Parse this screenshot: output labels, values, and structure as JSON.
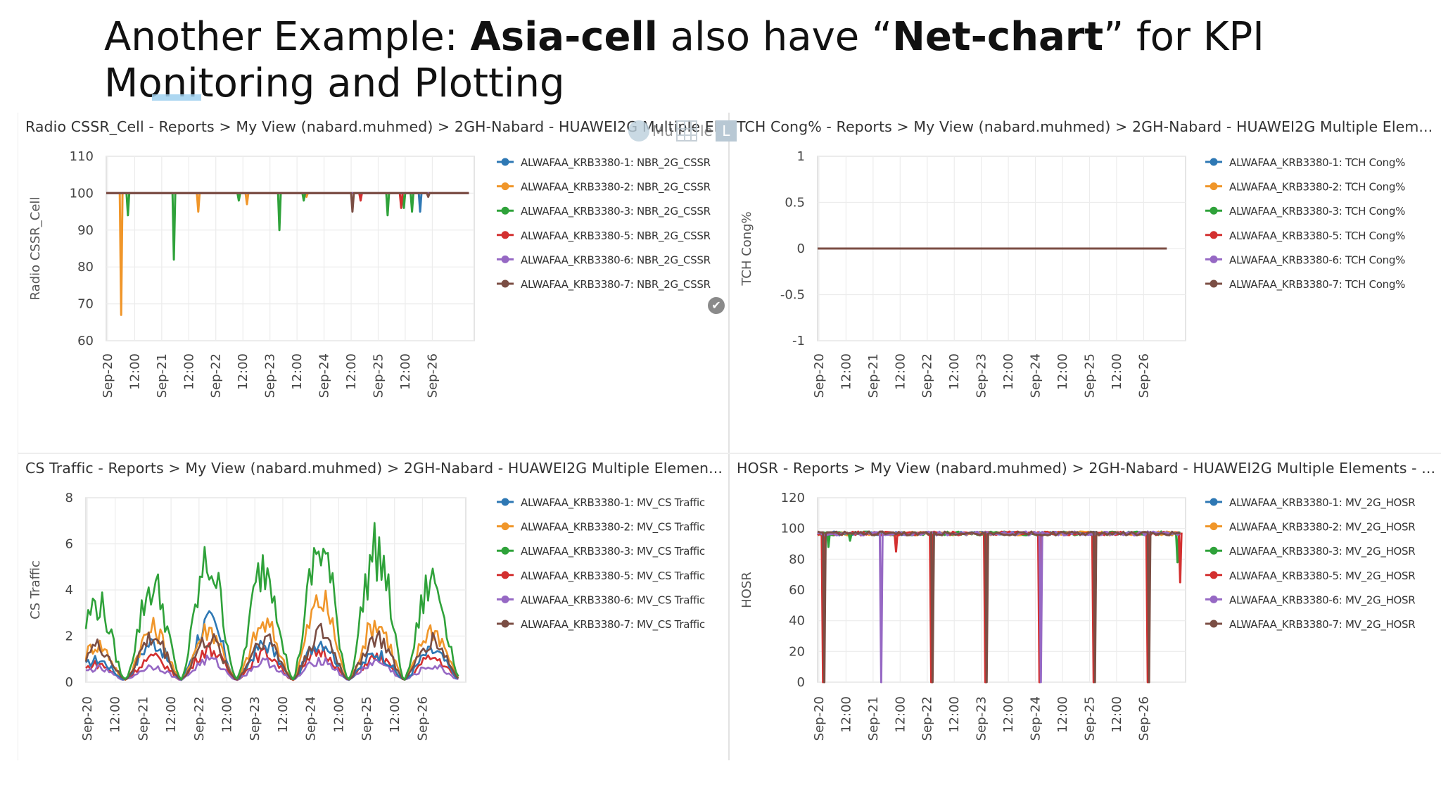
{
  "slide": {
    "title_parts": [
      {
        "text": "Another Example: ",
        "bold": false
      },
      {
        "text": "Asia-cell",
        "bold": true
      },
      {
        "text": " also have “",
        "bold": false
      },
      {
        "text": "Net-chart",
        "bold": true
      },
      {
        "text": "” for KPI Monitoring and Plotting",
        "bold": false
      }
    ],
    "accent_underline_color": "#9fd0ee"
  },
  "toolbar": {
    "gear_icon": "gear-icon",
    "grid_icon": "grid-icon",
    "grid_label": "Mu",
    "grid_label2": "le",
    "l_button_label": "L",
    "check_icon": "check-circle-icon",
    "check_glyph": "✔"
  },
  "legend_colors": [
    "#2e78b4",
    "#f0962a",
    "#2fa23a",
    "#d33030",
    "#9668c4",
    "#7b4e44"
  ],
  "chart_data": [
    {
      "type": "line",
      "header": "Radio CSSR_Cell - Reports > My View (nabard.muhmed) > 2GH-Nabard - HUAWEI2G Multiple Elements",
      "ylabel": "Radio CSSR_Cell",
      "ylim": [
        60,
        110
      ],
      "yticks": [
        60,
        70,
        80,
        90,
        100,
        110
      ],
      "x_ticks": [
        "Sep-20",
        "12:00",
        "Sep-21",
        "12:00",
        "Sep-22",
        "12:00",
        "Sep-23",
        "12:00",
        "Sep-24",
        "12:00",
        "Sep-25",
        "12:00",
        "Sep-26"
      ],
      "grid": true,
      "legend": "right",
      "series": [
        {
          "name": "ALWAFAA_KRB3380-1: NBR_2G_CSSR",
          "baseline": 100,
          "dips": [
            [
              11.6,
              95
            ]
          ]
        },
        {
          "name": "ALWAFAA_KRB3380-2: NBR_2G_CSSR",
          "baseline": 100,
          "dips": [
            [
              0.55,
              67
            ],
            [
              3.4,
              95
            ],
            [
              5.2,
              97
            ],
            [
              7.4,
              99
            ]
          ]
        },
        {
          "name": "ALWAFAA_KRB3380-3: NBR_2G_CSSR",
          "baseline": 100,
          "dips": [
            [
              0.8,
              94
            ],
            [
              2.5,
              82
            ],
            [
              4.9,
              98
            ],
            [
              6.4,
              90
            ],
            [
              7.3,
              98
            ],
            [
              10.4,
              94
            ],
            [
              11.0,
              96
            ],
            [
              11.3,
              95
            ]
          ]
        },
        {
          "name": "ALWAFAA_KRB3380-5: NBR_2G_CSSR",
          "baseline": 100,
          "dips": [
            [
              9.4,
              98
            ],
            [
              10.9,
              96
            ]
          ]
        },
        {
          "name": "ALWAFAA_KRB3380-6: NBR_2G_CSSR",
          "baseline": 100,
          "dips": []
        },
        {
          "name": "ALWAFAA_KRB3380-7: NBR_2G_CSSR",
          "baseline": 100,
          "dips": [
            [
              9.1,
              95
            ],
            [
              11.9,
              99
            ]
          ]
        }
      ]
    },
    {
      "type": "line",
      "header": "TCH Cong% - Reports > My View (nabard.muhmed) > 2GH-Nabard - HUAWEI2G Multiple Elem...",
      "ylabel": "TCH Cong%",
      "ylim": [
        -1,
        1
      ],
      "yticks": [
        -1,
        -0.5,
        0,
        0.5,
        1
      ],
      "x_ticks": [
        "Sep-20",
        "12:00",
        "Sep-21",
        "12:00",
        "Sep-22",
        "12:00",
        "Sep-23",
        "12:00",
        "Sep-24",
        "12:00",
        "Sep-25",
        "12:00",
        "Sep-26"
      ],
      "grid": true,
      "legend": "right",
      "series": [
        {
          "name": "ALWAFAA_KRB3380-1: TCH Cong%",
          "baseline": 0,
          "dips": []
        },
        {
          "name": "ALWAFAA_KRB3380-2: TCH Cong%",
          "baseline": 0,
          "dips": []
        },
        {
          "name": "ALWAFAA_KRB3380-3: TCH Cong%",
          "baseline": 0,
          "dips": []
        },
        {
          "name": "ALWAFAA_KRB3380-5: TCH Cong%",
          "baseline": 0,
          "dips": []
        },
        {
          "name": "ALWAFAA_KRB3380-6: TCH Cong%",
          "baseline": 0,
          "dips": []
        },
        {
          "name": "ALWAFAA_KRB3380-7: TCH Cong%",
          "baseline": 0,
          "dips": []
        }
      ]
    },
    {
      "type": "line",
      "header": "CS Traffic - Reports > My View (nabard.muhmed) > 2GH-Nabard - HUAWEI2G Multiple Elemen...",
      "ylabel": "CS Traffic",
      "ylim": [
        0,
        8
      ],
      "yticks": [
        0,
        2,
        4,
        6,
        8
      ],
      "x_ticks": [
        "Sep-20",
        "12:00",
        "Sep-21",
        "12:00",
        "Sep-22",
        "12:00",
        "Sep-23",
        "12:00",
        "Sep-24",
        "12:00",
        "Sep-25",
        "12:00",
        "Sep-26"
      ],
      "grid": true,
      "legend": "right",
      "daily_peaks": {
        "ALWAFAA_KRB3380-3: MV_CS Traffic": [
          3.5,
          4.3,
          5.3,
          5.2,
          6.0,
          5.9,
          4.5,
          5.5,
          5.2
        ],
        "ALWAFAA_KRB3380-2: MV_CS Traffic": [
          1.6,
          2.3,
          2.3,
          2.5,
          3.6,
          2.6,
          2.3,
          3.2,
          2.0
        ],
        "ALWAFAA_KRB3380-7: MV_CS Traffic": [
          1.5,
          1.9,
          1.8,
          1.9,
          2.1,
          1.9,
          1.8,
          2.1,
          1.6
        ],
        "ALWAFAA_KRB3380-1: MV_CS Traffic": [
          0.9,
          1.7,
          2.6,
          1.6,
          1.8,
          1.2,
          1.3,
          1.5,
          1.1
        ],
        "ALWAFAA_KRB3380-5: MV_CS Traffic": [
          0.7,
          1.0,
          1.4,
          1.2,
          1.3,
          1.0,
          1.0,
          1.2,
          0.9
        ],
        "ALWAFAA_KRB3380-6: MV_CS Traffic": [
          0.5,
          0.6,
          0.9,
          0.8,
          0.9,
          0.8,
          0.6,
          0.8,
          0.6
        ]
      },
      "series": [
        {
          "name": "ALWAFAA_KRB3380-1: MV_CS Traffic"
        },
        {
          "name": "ALWAFAA_KRB3380-2: MV_CS Traffic"
        },
        {
          "name": "ALWAFAA_KRB3380-3: MV_CS Traffic"
        },
        {
          "name": "ALWAFAA_KRB3380-5: MV_CS Traffic"
        },
        {
          "name": "ALWAFAA_KRB3380-6: MV_CS Traffic"
        },
        {
          "name": "ALWAFAA_KRB3380-7: MV_CS Traffic"
        }
      ]
    },
    {
      "type": "line",
      "header": "HOSR - Reports > My View (nabard.muhmed) > 2GH-Nabard - HUAWEI2G Multiple Elements - ...",
      "ylabel": "HOSR",
      "ylim": [
        0,
        120
      ],
      "yticks": [
        0,
        20,
        40,
        60,
        80,
        100,
        120
      ],
      "x_ticks": [
        "Sep-20",
        "12:00",
        "Sep-21",
        "12:00",
        "Sep-22",
        "12:00",
        "Sep-23",
        "12:00",
        "Sep-24",
        "12:00",
        "Sep-25",
        "12:00",
        "Sep-26"
      ],
      "grid": true,
      "legend": "right",
      "series": [
        {
          "name": "ALWAFAA_KRB3380-1: MV_2G_HOSR",
          "baseline": 98,
          "dips": []
        },
        {
          "name": "ALWAFAA_KRB3380-2: MV_2G_HOSR",
          "baseline": 98,
          "dips": []
        },
        {
          "name": "ALWAFAA_KRB3380-3: MV_2G_HOSR",
          "baseline": 98,
          "dips": [
            [
              0.4,
              88
            ],
            [
              1.2,
              92
            ],
            [
              13.3,
              78
            ]
          ]
        },
        {
          "name": "ALWAFAA_KRB3380-5: MV_2G_HOSR",
          "baseline": 98,
          "dips": [
            [
              0.2,
              0
            ],
            [
              2.9,
              85
            ],
            [
              4.2,
              0
            ],
            [
              6.2,
              0
            ],
            [
              8.2,
              0
            ],
            [
              10.2,
              0
            ],
            [
              12.2,
              0
            ],
            [
              13.4,
              65
            ]
          ]
        },
        {
          "name": "ALWAFAA_KRB3380-6: MV_2G_HOSR",
          "baseline": 98,
          "dips": [
            [
              2.35,
              0
            ],
            [
              8.25,
              0
            ]
          ]
        },
        {
          "name": "ALWAFAA_KRB3380-7: MV_2G_HOSR",
          "baseline": 98,
          "dips": [
            [
              0.25,
              0
            ],
            [
              4.25,
              0
            ],
            [
              6.25,
              0
            ],
            [
              10.25,
              0
            ],
            [
              12.25,
              0
            ]
          ]
        }
      ]
    }
  ]
}
